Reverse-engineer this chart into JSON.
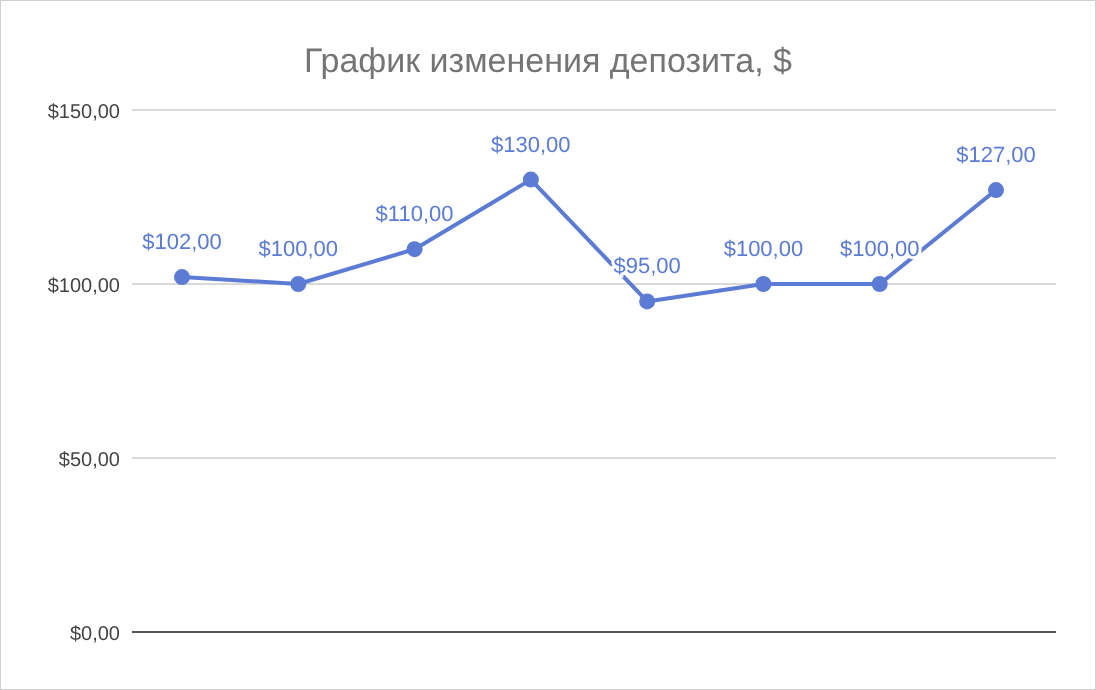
{
  "chart_data": {
    "type": "line",
    "title": "График изменения депозита, $",
    "categories": [
      null,
      null,
      null,
      null,
      null,
      null,
      null,
      null
    ],
    "series": [
      {
        "color": "#5b7bd5",
        "values": [
          102,
          100,
          110,
          130,
          95,
          100,
          100,
          127
        ],
        "value_labels": [
          "$102,00",
          "$100,00",
          "$110,00",
          "$130,00",
          "$95,00",
          "$100,00",
          "$100,00",
          "$127,00"
        ]
      }
    ],
    "ylim": [
      0,
      150
    ],
    "yticks": [
      {
        "value": 0,
        "label": "$0,00"
      },
      {
        "value": 50,
        "label": "$50,00"
      },
      {
        "value": 100,
        "label": "$100,00"
      },
      {
        "value": 150,
        "label": "$150,00"
      }
    ],
    "grid": "y",
    "marker": "circle",
    "line_style": "solid"
  }
}
